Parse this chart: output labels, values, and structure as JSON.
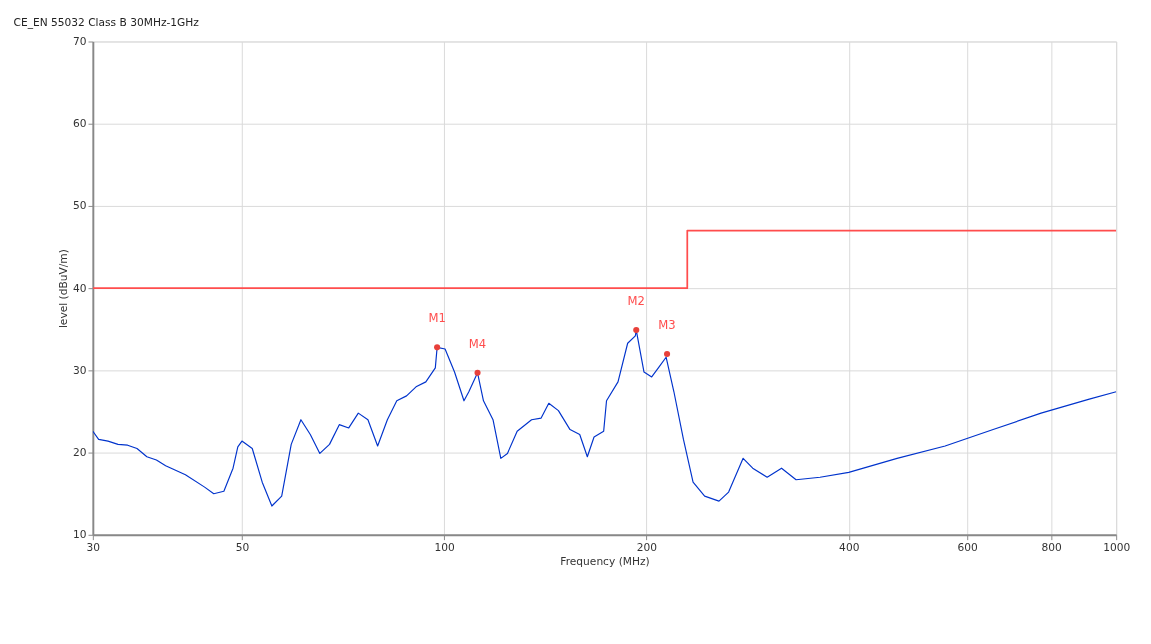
{
  "chart_data": {
    "type": "line",
    "title": "CE_EN 55032 Class B 30MHz-1GHz",
    "xlabel": "Frequency (MHz)",
    "ylabel": "level (dBuV/m)",
    "log": "x",
    "grid": true,
    "xlim": [
      30,
      1000
    ],
    "xticks": [
      30,
      50,
      100,
      200,
      400,
      600,
      800,
      1000
    ],
    "ylim": [
      10,
      70
    ],
    "yticks": [
      10,
      20,
      30,
      40,
      50,
      60,
      70
    ],
    "series": [
      {
        "color": "#0033cc",
        "line_style": "solid",
        "marker": "none",
        "x": [
          30,
          30.6,
          31.6,
          32.7,
          33.8,
          34.9,
          36.1,
          37.3,
          38.5,
          41.2,
          44.0,
          45.4,
          47.0,
          48.5,
          49.3,
          50,
          51.8,
          53.6,
          55.4,
          57.3,
          59.2,
          61.2,
          63.2,
          65.3,
          67.5,
          69.8,
          72.1,
          74.5,
          77.0,
          79.6,
          82.3,
          85.0,
          87.9,
          90.8,
          93.9,
          97.0,
          97.6,
          100.3,
          103.6,
          107.0,
          108.8,
          112.1,
          114.4,
          118.2,
          121.4,
          124.2,
          128.4,
          134.9,
          139.4,
          143.1,
          147.9,
          153.9,
          159.1,
          163.3,
          167.1,
          172.7,
          174.4,
          181.4,
          187.5,
          192.5,
          193.1,
          198.3,
          203.6,
          208.3,
          213.9,
          219.7,
          227.0,
          234.6,
          244.1,
          256.4,
          265.0,
          278.5,
          287.8,
          302.4,
          317.7,
          333.9,
          362.5,
          400,
          472,
          556.5,
          656,
          773,
          912,
          1000
        ],
        "values": [
          22.6,
          21.6,
          21.4,
          21.0,
          20.9,
          20.5,
          19.5,
          19.1,
          18.4,
          17.3,
          15.8,
          15.0,
          15.3,
          18.1,
          20.7,
          21.4,
          20.5,
          16.4,
          13.5,
          14.7,
          21.0,
          24.0,
          22.2,
          19.9,
          21.0,
          23.4,
          23.0,
          24.8,
          24.0,
          20.8,
          24.0,
          26.3,
          26.9,
          28.0,
          28.6,
          30.3,
          32.8,
          32.6,
          29.8,
          26.3,
          27.4,
          29.7,
          26.3,
          24.0,
          19.3,
          19.9,
          22.6,
          24.0,
          24.2,
          26.0,
          25.1,
          22.8,
          22.2,
          19.5,
          21.9,
          22.6,
          26.3,
          28.6,
          33.3,
          34.2,
          34.9,
          29.8,
          29.2,
          30.3,
          31.6,
          27.4,
          21.6,
          16.4,
          14.7,
          14.1,
          15.2,
          19.3,
          18.1,
          17.0,
          18.1,
          16.7,
          17.0,
          17.6,
          19.3,
          20.8,
          22.8,
          24.8,
          26.5,
          27.4
        ]
      },
      {
        "type": "step",
        "color": "#ff4d4d",
        "line_style": "solid",
        "marker": "none",
        "x": [
          30,
          230,
          1000
        ],
        "values": [
          40,
          47,
          47
        ]
      },
      {
        "type": "scatter",
        "color": "#e8403a",
        "marker": "circle",
        "x": [
          97.6,
          193.1,
          214.6,
          112.1
        ],
        "values": [
          32.8,
          34.9,
          32.0,
          29.7
        ]
      }
    ],
    "annotations": [
      "M1",
      "M2",
      "M3",
      "M4"
    ]
  }
}
